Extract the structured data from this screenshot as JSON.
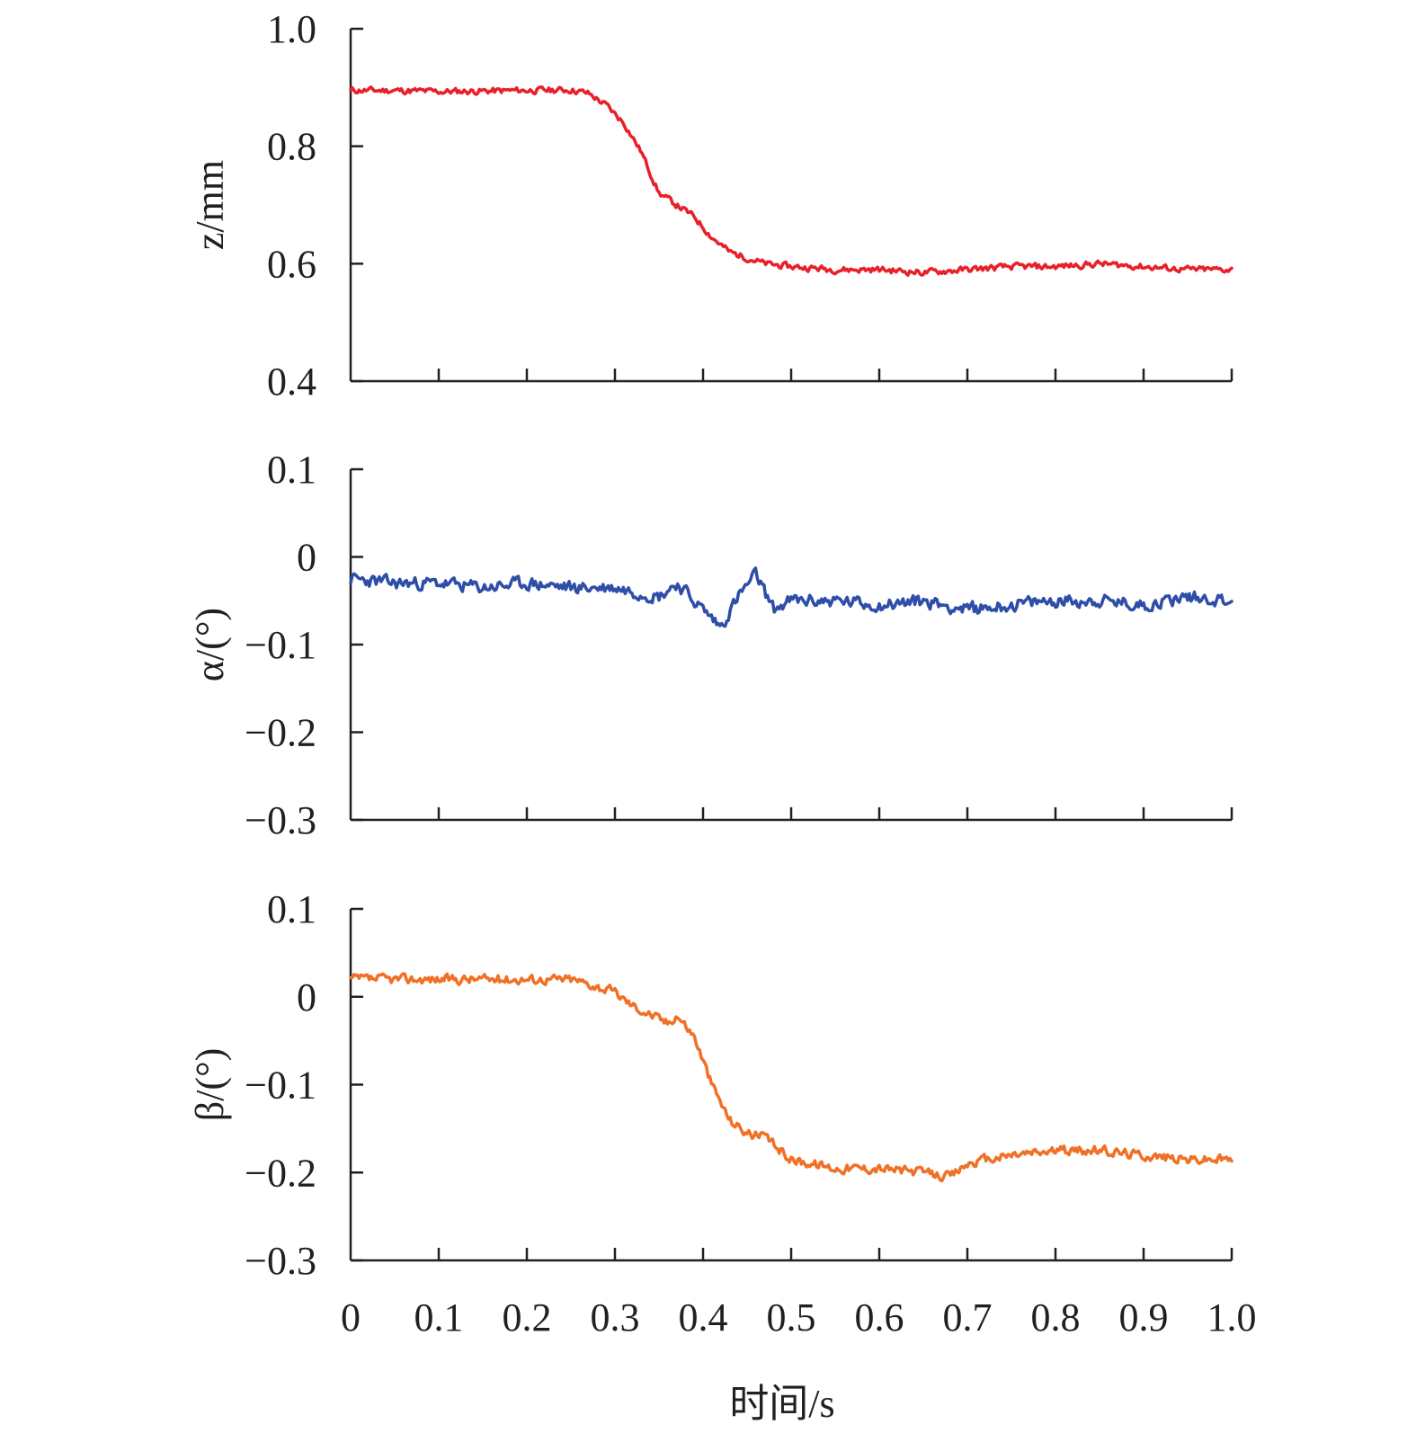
{
  "chart_data": [
    {
      "type": "line",
      "ylabel": "z/mm",
      "ylim": [
        0.4,
        1.0
      ],
      "yticks": [
        "0.4",
        "0.6",
        "0.8",
        "1.0"
      ],
      "xlim": [
        0,
        1.0
      ],
      "grid": false,
      "series": [
        {
          "color": "#e8202a",
          "x": [
            0,
            0.05,
            0.1,
            0.15,
            0.2,
            0.25,
            0.27,
            0.29,
            0.31,
            0.33,
            0.35,
            0.37,
            0.39,
            0.41,
            0.43,
            0.45,
            0.47,
            0.5,
            0.55,
            0.6,
            0.65,
            0.7,
            0.75,
            0.8,
            0.85,
            0.9,
            0.95,
            1.0
          ],
          "values": [
            0.895,
            0.895,
            0.893,
            0.894,
            0.895,
            0.896,
            0.89,
            0.87,
            0.84,
            0.79,
            0.72,
            0.7,
            0.68,
            0.645,
            0.62,
            0.61,
            0.6,
            0.595,
            0.59,
            0.59,
            0.585,
            0.59,
            0.595,
            0.595,
            0.6,
            0.595,
            0.59,
            0.59
          ]
        }
      ]
    },
    {
      "type": "line",
      "ylabel": "α/(°)",
      "ylim": [
        -0.3,
        0.1
      ],
      "yticks": [
        "−0.3",
        "−0.2",
        "−0.1",
        "0",
        "0.1"
      ],
      "xlim": [
        0,
        1.0
      ],
      "grid": false,
      "series": [
        {
          "color": "#2e4ea8",
          "x": [
            0,
            0.05,
            0.1,
            0.15,
            0.2,
            0.25,
            0.3,
            0.35,
            0.37,
            0.4,
            0.42,
            0.44,
            0.46,
            0.48,
            0.5,
            0.55,
            0.6,
            0.65,
            0.7,
            0.75,
            0.8,
            0.85,
            0.9,
            0.95,
            1.0
          ],
          "values": [
            -0.025,
            -0.03,
            -0.03,
            -0.035,
            -0.03,
            -0.035,
            -0.035,
            -0.045,
            -0.03,
            -0.06,
            -0.08,
            -0.045,
            -0.02,
            -0.06,
            -0.05,
            -0.05,
            -0.055,
            -0.05,
            -0.06,
            -0.055,
            -0.05,
            -0.05,
            -0.055,
            -0.045,
            -0.05
          ]
        }
      ]
    },
    {
      "type": "line",
      "ylabel": "β/(°)",
      "xlabel": "时间/s",
      "ylim": [
        -0.3,
        0.1
      ],
      "yticks": [
        "−0.3",
        "−0.2",
        "−0.1",
        "0",
        "0.1"
      ],
      "xlim": [
        0,
        1.0
      ],
      "xticks": [
        "0",
        "0.1",
        "0.2",
        "0.3",
        "0.4",
        "0.5",
        "0.6",
        "0.7",
        "0.8",
        "0.9",
        "1.0"
      ],
      "grid": false,
      "series": [
        {
          "color": "#f07026",
          "x": [
            0,
            0.05,
            0.1,
            0.15,
            0.2,
            0.25,
            0.27,
            0.3,
            0.32,
            0.34,
            0.36,
            0.37,
            0.39,
            0.41,
            0.43,
            0.45,
            0.47,
            0.5,
            0.55,
            0.6,
            0.65,
            0.68,
            0.7,
            0.75,
            0.8,
            0.85,
            0.9,
            0.95,
            1.0
          ],
          "values": [
            0.02,
            0.02,
            0.02,
            0.02,
            0.02,
            0.02,
            0.015,
            0.005,
            -0.01,
            -0.02,
            -0.03,
            -0.02,
            -0.045,
            -0.1,
            -0.14,
            -0.155,
            -0.16,
            -0.185,
            -0.195,
            -0.195,
            -0.2,
            -0.205,
            -0.19,
            -0.18,
            -0.175,
            -0.175,
            -0.18,
            -0.185,
            -0.185
          ]
        }
      ]
    }
  ]
}
